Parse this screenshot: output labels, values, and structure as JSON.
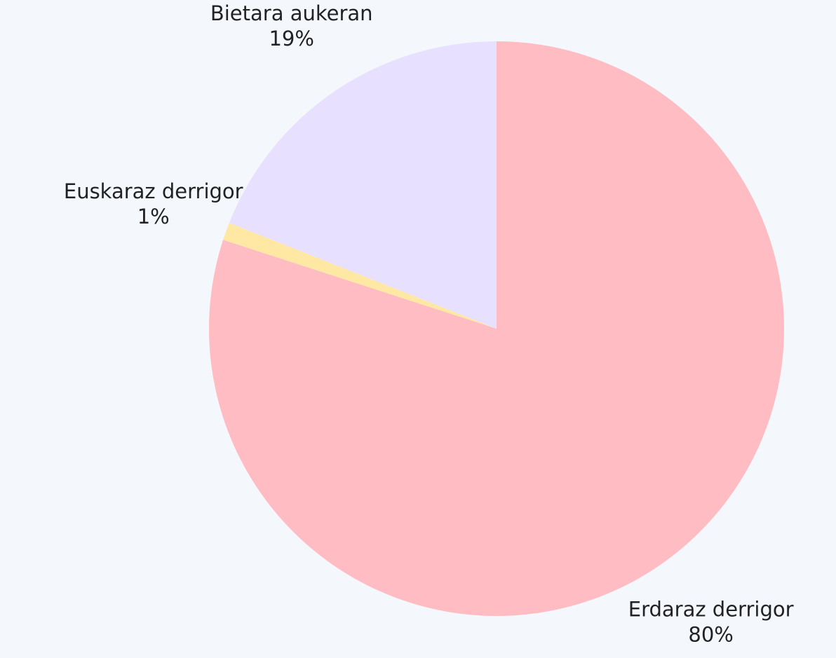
{
  "chart_data": {
    "type": "pie",
    "categories": [
      "Erdaraz derrigor",
      "Euskaraz derrigor",
      "Bietara aukeran"
    ],
    "values": [
      80,
      1,
      19
    ],
    "value_labels": [
      "80%",
      "1%",
      "19%"
    ],
    "colors": [
      "#ffbcc2",
      "#ffe8a3",
      "#e8e0ff"
    ]
  }
}
